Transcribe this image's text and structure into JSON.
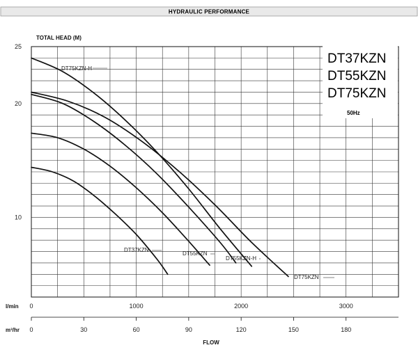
{
  "header": {
    "title": "HYDRAULIC PERFORMANCE"
  },
  "chart_data": {
    "type": "line",
    "title": "",
    "ylabel": "TOTAL HEAD (M)",
    "xlabel": "FLOW",
    "ylim": [
      3,
      25
    ],
    "xlim_lmin": [
      0,
      3500
    ],
    "grid": true,
    "y_ticks": [
      {
        "value": 25,
        "label": "25"
      },
      {
        "value": 20,
        "label": "20"
      },
      {
        "value": 10,
        "label": "10"
      }
    ],
    "x_axis_primary": {
      "unit_label": "l/min",
      "ticks": [
        {
          "value": 0,
          "label": "0"
        },
        {
          "value": 1000,
          "label": "1000"
        },
        {
          "value": 2000,
          "label": "2000"
        },
        {
          "value": 3000,
          "label": "3000"
        }
      ]
    },
    "x_axis_secondary": {
      "unit_label": "m³/hr",
      "ticks": [
        {
          "value": 0,
          "label": "0"
        },
        {
          "value": 30,
          "label": "30"
        },
        {
          "value": 60,
          "label": "60"
        },
        {
          "value": 90,
          "label": "90"
        },
        {
          "value": 120,
          "label": "120"
        },
        {
          "value": 150,
          "label": "150"
        },
        {
          "value": 180,
          "label": "180"
        }
      ]
    },
    "models": [
      "DT37KZN",
      "DT55KZN",
      "DT75KZN"
    ],
    "frequency": "50Hz",
    "series": [
      {
        "name": "DT37KZN",
        "x": [
          0,
          200,
          400,
          600,
          800,
          1000,
          1200,
          1300
        ],
        "y": [
          14.4,
          14.0,
          13.2,
          11.9,
          10.3,
          8.5,
          6.3,
          5.0
        ]
      },
      {
        "name": "DT55KZN",
        "x": [
          0,
          250,
          500,
          750,
          1000,
          1250,
          1500,
          1700
        ],
        "y": [
          17.4,
          17.0,
          16.0,
          14.5,
          12.6,
          10.4,
          7.9,
          5.8
        ]
      },
      {
        "name": "DT55KZN-H",
        "x": [
          0,
          300,
          600,
          900,
          1200,
          1500,
          1800,
          1950
        ],
        "y": [
          20.8,
          20.0,
          18.4,
          16.3,
          13.8,
          10.9,
          7.8,
          6.0
        ]
      },
      {
        "name": "DT75KZN-H",
        "x": [
          0,
          300,
          600,
          900,
          1200,
          1500,
          1800,
          2100
        ],
        "y": [
          24.0,
          22.8,
          20.9,
          18.5,
          15.7,
          12.5,
          9.0,
          5.7
        ]
      },
      {
        "name": "DT75KZN",
        "x": [
          0,
          350,
          700,
          1050,
          1400,
          1750,
          2100,
          2450
        ],
        "y": [
          21.0,
          20.2,
          18.8,
          16.7,
          14.1,
          11.1,
          7.8,
          4.8
        ]
      }
    ]
  }
}
